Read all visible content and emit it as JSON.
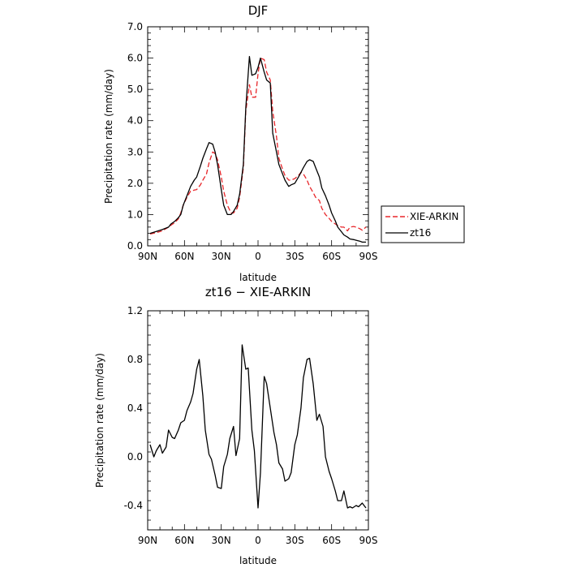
{
  "chart_data": [
    {
      "type": "line",
      "title": "DJF",
      "xlabel": "latitude",
      "ylabel": "Precipitation rate (mm/day)",
      "xlim": [
        90,
        -90
      ],
      "ylim": [
        0,
        7
      ],
      "xticks": [
        90,
        60,
        30,
        0,
        -30,
        -60,
        -90
      ],
      "xtick_labels": [
        "90N",
        "60N",
        "30N",
        "0",
        "30S",
        "60S",
        "90S"
      ],
      "yticks": [
        0,
        1,
        2,
        3,
        4,
        5,
        6,
        7
      ],
      "ytick_labels": [
        "0.0",
        "1.0",
        "2.0",
        "3.0",
        "4.0",
        "5.0",
        "6.0",
        "7.0"
      ],
      "legend_position": "outside-right",
      "x": [
        88,
        83,
        78,
        73,
        71,
        68,
        65,
        63,
        61,
        58,
        55,
        52,
        50,
        47,
        45,
        42,
        40,
        37,
        35,
        33,
        30,
        28,
        25,
        22,
        20,
        17,
        15,
        12,
        10,
        7,
        5,
        2,
        0,
        -2,
        -5,
        -7,
        -10,
        -12,
        -15,
        -17,
        -20,
        -22,
        -25,
        -27,
        -30,
        -33,
        -35,
        -37,
        -40,
        -42,
        -45,
        -47,
        -50,
        -52,
        -55,
        -58,
        -60,
        -63,
        -65,
        -68,
        -70,
        -73,
        -75,
        -78,
        -80,
        -83,
        -85,
        -88
      ],
      "series": [
        {
          "name": "XIE-ARKIN",
          "color": "#e8262a",
          "dash": "dashed",
          "values": [
            0.38,
            0.42,
            0.48,
            0.6,
            0.66,
            0.74,
            0.86,
            1.05,
            1.3,
            1.55,
            1.75,
            1.78,
            1.8,
            1.95,
            2.1,
            2.3,
            2.65,
            3.0,
            2.95,
            2.75,
            2.2,
            1.75,
            1.3,
            1.05,
            1.05,
            1.2,
            1.55,
            2.5,
            4.3,
            5.15,
            4.75,
            4.75,
            5.5,
            6.0,
            5.95,
            5.55,
            5.3,
            4.3,
            3.5,
            2.8,
            2.45,
            2.25,
            2.1,
            2.1,
            2.15,
            2.25,
            2.35,
            2.3,
            2.1,
            1.9,
            1.7,
            1.55,
            1.45,
            1.2,
            1.0,
            0.88,
            0.78,
            0.7,
            0.65,
            0.6,
            0.6,
            0.48,
            0.6,
            0.62,
            0.6,
            0.55,
            0.5,
            0.6
          ]
        },
        {
          "name": "zt16",
          "color": "#000000",
          "dash": "solid",
          "values": [
            0.4,
            0.46,
            0.52,
            0.6,
            0.7,
            0.78,
            0.9,
            1.0,
            1.3,
            1.6,
            1.9,
            2.1,
            2.2,
            2.55,
            2.8,
            3.1,
            3.3,
            3.25,
            3.0,
            2.6,
            1.8,
            1.3,
            1.0,
            1.0,
            1.1,
            1.3,
            1.65,
            2.6,
            4.4,
            6.05,
            5.45,
            5.5,
            5.7,
            6.0,
            5.55,
            5.3,
            5.2,
            3.6,
            3.0,
            2.6,
            2.3,
            2.1,
            1.9,
            1.95,
            2.0,
            2.2,
            2.35,
            2.5,
            2.7,
            2.75,
            2.7,
            2.5,
            2.2,
            1.85,
            1.6,
            1.3,
            1.05,
            0.8,
            0.6,
            0.45,
            0.35,
            0.28,
            0.22,
            0.2,
            0.18,
            0.15,
            0.12,
            0.12
          ]
        }
      ]
    },
    {
      "type": "line",
      "title": "zt16 − XIE-ARKIN",
      "xlabel": "latitude",
      "ylabel": "Precipitation rate (mm/day)",
      "xlim": [
        90,
        -90
      ],
      "ylim": [
        -0.6,
        1.2
      ],
      "xticks": [
        90,
        60,
        30,
        0,
        -30,
        -60,
        -90
      ],
      "xtick_labels": [
        "90N",
        "60N",
        "30N",
        "0",
        "30S",
        "60S",
        "90S"
      ],
      "yticks": [
        -0.4,
        0,
        0.4,
        0.8,
        1.2
      ],
      "ytick_labels": [
        "-0.4",
        "0.0",
        "0.4",
        "0.8",
        "1.2"
      ],
      "x": [
        88,
        85,
        83,
        80,
        78,
        75,
        73,
        70,
        68,
        65,
        63,
        60,
        58,
        55,
        53,
        50,
        48,
        45,
        43,
        40,
        38,
        35,
        33,
        30,
        28,
        25,
        23,
        20,
        18,
        15,
        13,
        10,
        8,
        5,
        3,
        0,
        -2,
        -5,
        -7,
        -10,
        -13,
        -15,
        -17,
        -20,
        -22,
        -25,
        -27,
        -30,
        -32,
        -35,
        -37,
        -40,
        -42,
        -45,
        -48,
        -50,
        -53,
        -55,
        -58,
        -60,
        -63,
        -65,
        -68,
        -70,
        -73,
        -75,
        -77,
        -80,
        -82,
        -85,
        -88
      ],
      "series": [
        {
          "name": "",
          "color": "#000000",
          "dash": "solid",
          "values": [
            0.1,
            0.0,
            0.05,
            0.1,
            0.03,
            0.08,
            0.22,
            0.16,
            0.15,
            0.22,
            0.28,
            0.3,
            0.38,
            0.45,
            0.52,
            0.72,
            0.8,
            0.5,
            0.22,
            0.02,
            -0.02,
            -0.15,
            -0.25,
            -0.26,
            -0.08,
            0.02,
            0.15,
            0.25,
            0.01,
            0.15,
            0.92,
            0.72,
            0.73,
            0.22,
            0.05,
            -0.42,
            -0.13,
            0.66,
            0.6,
            0.4,
            0.2,
            0.1,
            -0.05,
            -0.1,
            -0.2,
            -0.18,
            -0.13,
            0.1,
            0.18,
            0.4,
            0.65,
            0.8,
            0.81,
            0.6,
            0.3,
            0.35,
            0.25,
            0.0,
            -0.12,
            -0.18,
            -0.28,
            -0.36,
            -0.36,
            -0.28,
            -0.42,
            -0.41,
            -0.42,
            -0.4,
            -0.41,
            -0.38,
            -0.42
          ]
        }
      ]
    }
  ]
}
